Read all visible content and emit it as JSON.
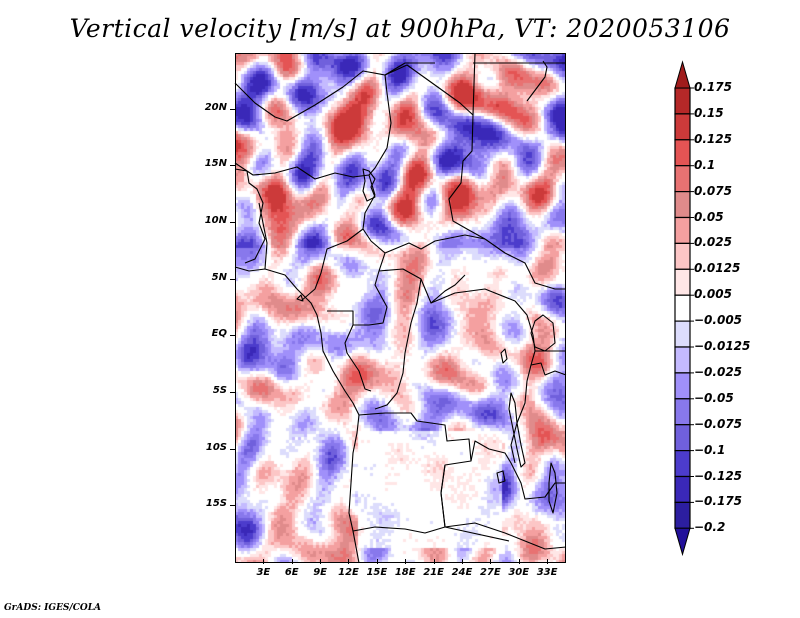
{
  "title": "Vertical velocity [m/s] at 900hPa, VT: 2020053106",
  "credit": "GrADS: IGES/COLA",
  "map": {
    "variable": "Vertical velocity",
    "units": "m/s",
    "level": "900hPa",
    "valid_time": "2020053106",
    "lon_range": [
      0,
      35
    ],
    "lat_range": [
      -20,
      25
    ],
    "y_ticks": [
      {
        "lat": 20,
        "label": "20N"
      },
      {
        "lat": 15,
        "label": "15N"
      },
      {
        "lat": 10,
        "label": "10N"
      },
      {
        "lat": 5,
        "label": "5N"
      },
      {
        "lat": 0,
        "label": "EQ"
      },
      {
        "lat": -5,
        "label": "5S"
      },
      {
        "lat": -10,
        "label": "10S"
      },
      {
        "lat": -15,
        "label": "15S"
      }
    ],
    "x_ticks": [
      {
        "lon": 3,
        "label": "3E"
      },
      {
        "lon": 6,
        "label": "6E"
      },
      {
        "lon": 9,
        "label": "9E"
      },
      {
        "lon": 12,
        "label": "12E"
      },
      {
        "lon": 15,
        "label": "15E"
      },
      {
        "lon": 18,
        "label": "18E"
      },
      {
        "lon": 21,
        "label": "21E"
      },
      {
        "lon": 24,
        "label": "24E"
      },
      {
        "lon": 27,
        "label": "27E"
      },
      {
        "lon": 30,
        "label": "30E"
      },
      {
        "lon": 33,
        "label": "33E"
      }
    ]
  },
  "colorbar": {
    "levels": [
      "0.175",
      "0.15",
      "0.125",
      "0.1",
      "0.075",
      "0.05",
      "0.025",
      "0.0125",
      "0.005",
      "-0.005",
      "-0.0125",
      "-0.025",
      "-0.05",
      "-0.075",
      "-0.1",
      "-0.125",
      "-0.175",
      "-0.2"
    ],
    "colors": [
      "#a01c1c",
      "#b52828",
      "#cc3a3a",
      "#e45454",
      "#e87272",
      "#e08b8b",
      "#f4a0a0",
      "#fcc6c6",
      "#ffe6e6",
      "#ffffff",
      "#dcdcfc",
      "#c4baff",
      "#a090fa",
      "#8878ec",
      "#7060dc",
      "#4c3ccc",
      "#3a28b8",
      "#2c1ea0",
      "#22109a"
    ],
    "top_arrow_color": "#a01c1c",
    "bottom_arrow_color": "#22109a"
  }
}
